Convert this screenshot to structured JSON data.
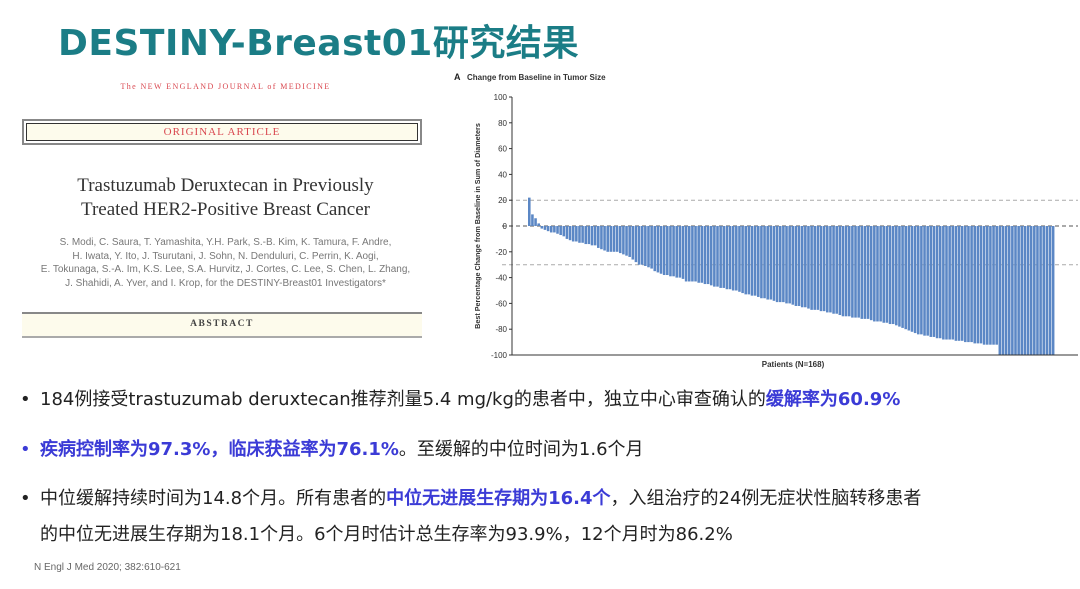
{
  "slide": {
    "title": "DESTINY-Breast01研究结果"
  },
  "paper": {
    "journal": "The NEW ENGLAND JOURNAL of MEDICINE",
    "section": "ORIGINAL ARTICLE",
    "title_line1": "Trastuzumab Deruxtecan in Previously",
    "title_line2": "Treated HER2-Positive Breast Cancer",
    "authors": [
      "S. Modi, C. Saura, T. Yamashita, Y.H. Park, S.-B. Kim, K. Tamura, F. Andre,",
      "H. Iwata, Y. Ito, J. Tsurutani, J. Sohn, N. Denduluri, C. Perrin, K. Aogi,",
      "E. Tokunaga, S.-A. Im, K.S. Lee, S.A. Hurvitz, J. Cortes, C. Lee, S. Chen, L. Zhang,",
      "J. Shahidi, A. Yver, and I. Krop, for the DESTINY-Breast01 Investigators*"
    ],
    "abstract": "ABSTRACT"
  },
  "chart_data": {
    "type": "bar",
    "panel": "A",
    "title": "Change from Baseline in Tumor Size",
    "xlabel": "Patients (N=168)",
    "ylabel": "Best Percentage Change from Baseline in Sum of Diameters",
    "ylim": [
      -100,
      100
    ],
    "yticks": [
      100,
      80,
      60,
      40,
      20,
      0,
      -20,
      -40,
      -60,
      -80,
      -100
    ],
    "reference_lines": [
      20,
      0,
      -30
    ],
    "bar_color": "#5b87c5",
    "values": [
      22,
      9,
      6,
      2,
      -2,
      -3,
      -4,
      -5,
      -5,
      -6,
      -7,
      -8,
      -10,
      -11,
      -12,
      -12,
      -13,
      -13,
      -14,
      -14,
      -15,
      -15,
      -17,
      -18,
      -19,
      -20,
      -20,
      -20,
      -20,
      -21,
      -22,
      -23,
      -24,
      -26,
      -28,
      -30,
      -30,
      -31,
      -32,
      -33,
      -35,
      -36,
      -37,
      -38,
      -38,
      -39,
      -39,
      -40,
      -40,
      -41,
      -43,
      -43,
      -43,
      -43,
      -44,
      -44,
      -45,
      -45,
      -46,
      -47,
      -47,
      -48,
      -48,
      -49,
      -49,
      -50,
      -50,
      -51,
      -52,
      -53,
      -53,
      -54,
      -54,
      -55,
      -56,
      -56,
      -57,
      -57,
      -58,
      -59,
      -59,
      -59,
      -60,
      -60,
      -61,
      -62,
      -62,
      -63,
      -63,
      -64,
      -65,
      -65,
      -65,
      -66,
      -66,
      -67,
      -67,
      -68,
      -68,
      -69,
      -70,
      -70,
      -70,
      -71,
      -71,
      -71,
      -72,
      -72,
      -72,
      -73,
      -74,
      -74,
      -74,
      -75,
      -75,
      -76,
      -76,
      -77,
      -78,
      -79,
      -80,
      -81,
      -82,
      -83,
      -84,
      -84,
      -85,
      -85,
      -86,
      -86,
      -87,
      -87,
      -88,
      -88,
      -88,
      -88,
      -89,
      -89,
      -89,
      -90,
      -90,
      -90,
      -91,
      -91,
      -91,
      -92,
      -92,
      -92,
      -92,
      -92,
      -100,
      -100,
      -100,
      -100,
      -100,
      -100,
      -100,
      -100,
      -100,
      -100,
      -100,
      -100,
      -100,
      -100,
      -100,
      -100,
      -100,
      -100
    ]
  },
  "bullets": [
    {
      "parts": [
        {
          "t": "184例接受trastuzumab deruxtecan推荐剂量5.4 mg/kg的患者中，独立中心审查确认的",
          "hl": false
        },
        {
          "t": "缓解率为60.9%",
          "hl": true
        }
      ]
    },
    {
      "parts": [
        {
          "t": "疾病控制率为97.3%，临床获益率为76.1%",
          "hl": true
        },
        {
          "t": "。至缓解的中位时间为1.6个月",
          "hl": false
        }
      ]
    },
    {
      "parts": [
        {
          "t": "中位缓解持续时间为14.8个月。所有患者的",
          "hl": false
        },
        {
          "t": "中位无进展生存期为16.4个",
          "hl": true
        },
        {
          "t": "，入组治疗的24例无症状性脑转移患者",
          "hl": false
        }
      ],
      "line2": "的中位无进展生存期为18.1个月。6个月时估计总生存率为93.9%，12个月时为86.2%"
    }
  ],
  "bullet_symbol": "•",
  "reference": "N Engl J Med 2020; 382:610-621",
  "colors": {
    "title": "#1b7d86",
    "highlight": "#3b3bd6"
  }
}
